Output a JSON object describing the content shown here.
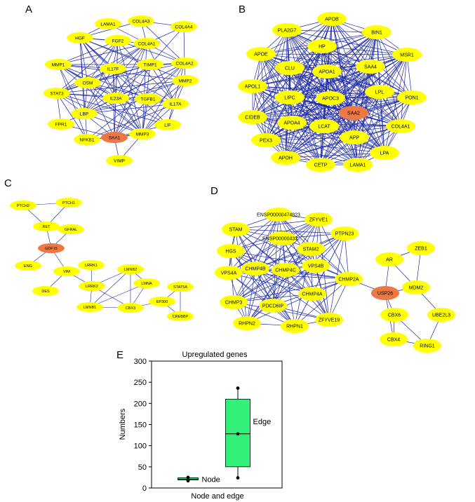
{
  "panels": {
    "A": {
      "letter": "A",
      "nodes": [
        "LAMA1",
        "COL4A3",
        "COL4A4",
        "HGF",
        "FGF2",
        "COL4A1",
        "MMP1",
        "IL17F",
        "TIMP1",
        "COL4A2",
        "OSM",
        "MMP2",
        "STAT3",
        "IL23A",
        "TGFB1",
        "IL17A",
        "LBP",
        "FPR1",
        "LIF",
        "NFKB1",
        "SAA1",
        "MMP3",
        "VIMP"
      ],
      "hub": "SAA1"
    },
    "B": {
      "letter": "B",
      "nodes": [
        "APOB",
        "PLA2G7",
        "BIN1",
        "HP",
        "APOE",
        "MSR1",
        "SAA4",
        "CLU",
        "APOA1",
        "APOL1",
        "LPL",
        "LIPC",
        "APOC3",
        "PON1",
        "SAA2",
        "CIDEB",
        "APOA4",
        "LCAT",
        "COL4A1",
        "PEX3",
        "APP",
        "LPA",
        "APOH",
        "CETP",
        "LAMA1"
      ],
      "hub": "SAA2"
    },
    "C": {
      "letter": "C",
      "nodes": [
        "PTCH2",
        "PTCH1",
        "RET",
        "GFRAL",
        "GDF15",
        "ENG",
        "VIM",
        "DES",
        "LRRK1",
        "LRRK2",
        "LMNB2",
        "LMNA",
        "STAT5A",
        "LMNB1",
        "CBX3",
        "EP300",
        "CREBBP"
      ],
      "hub": "GDF15"
    },
    "D": {
      "letter": "D",
      "nodes": [
        "ENSP00000474823",
        "ZFYVE1",
        "STAM",
        "ENSP00000433...",
        "PTPN23",
        "STAM2",
        "HGS",
        "CHMP4B",
        "CHMP4C",
        "VPS4B",
        "VPS4A",
        "CHMP2A",
        "CHMP4A",
        "CHMP3",
        "PDCD6IP",
        "RHPN2",
        "RHPN1",
        "ZFYVE19",
        "ZEB1",
        "AR",
        "USP26",
        "MDM2",
        "CBX6",
        "UBE2L3",
        "CBX4",
        "RING1"
      ],
      "hub": "USP26"
    }
  },
  "colors": {
    "node": "#ffff00",
    "hub": "#ee7844",
    "edge": "#1f2aa8",
    "box": "#33f07a"
  },
  "chart_data": {
    "panel": "E",
    "type": "box",
    "title": "Upregulated genes",
    "xlabel": "Node and edge",
    "ylabel": "Numbers",
    "ylim": [
      0,
      300
    ],
    "yticks": [
      0,
      50,
      100,
      150,
      200,
      250,
      300
    ],
    "series": [
      {
        "name": "Node",
        "min": 17,
        "q1": 19,
        "median": 21,
        "mean": 21,
        "q3": 24,
        "max": 25
      },
      {
        "name": "Edge",
        "min": 24,
        "q1": 50,
        "median": 128,
        "mean": 128,
        "q3": 210,
        "max": 236
      }
    ]
  }
}
